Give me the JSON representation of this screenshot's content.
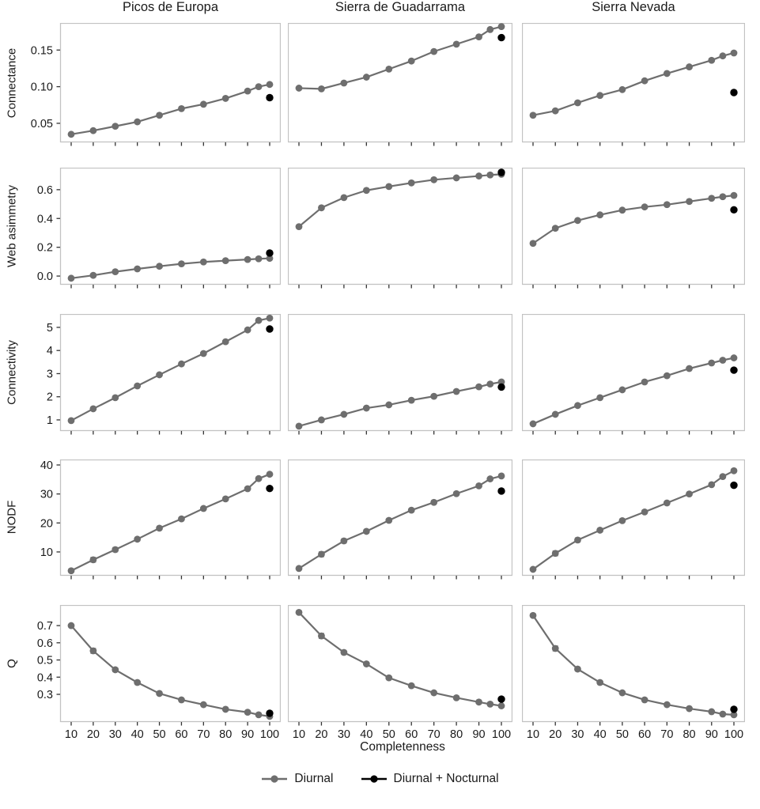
{
  "chart_data": {
    "type": "line",
    "xlabel": "Completenness",
    "columns": [
      "Picos de Europa",
      "Sierra de Guadarrama",
      "Sierra Nevada"
    ],
    "x": [
      10,
      20,
      30,
      40,
      50,
      60,
      70,
      80,
      90,
      95,
      100
    ],
    "x_ticks": [
      10,
      20,
      30,
      40,
      50,
      60,
      70,
      80,
      90,
      100
    ],
    "x_tick_labels": [
      "10",
      "20",
      "30",
      "40",
      "50",
      "60",
      "70",
      "80",
      "90",
      "100"
    ],
    "error_bars": true,
    "legend": [
      {
        "name": "Diurnal",
        "color": "#6e6e6e"
      },
      {
        "name": "Diurnal + Nocturnal",
        "color": "#000000"
      }
    ],
    "colors": {
      "diurnal": "#6e6e6e",
      "nocturnal": "#000000",
      "panel_border": "#c2c2c2",
      "tick": "#333333",
      "text": "#1a1a1a"
    },
    "rows": [
      {
        "ylabel": "Connectance",
        "ylim": [
          0.024,
          0.187
        ],
        "yticks": [
          0.05,
          0.1,
          0.15
        ],
        "ytick_labels": [
          "0.05",
          "0.10",
          "0.15"
        ],
        "diurnal": [
          [
            0.035,
            0.04,
            0.046,
            0.052,
            0.061,
            0.07,
            0.076,
            0.084,
            0.094,
            0.1,
            0.103
          ],
          [
            0.098,
            0.097,
            0.105,
            0.113,
            0.124,
            0.135,
            0.148,
            0.158,
            0.168,
            0.178,
            0.182
          ],
          [
            0.061,
            0.067,
            0.078,
            0.088,
            0.096,
            0.108,
            0.118,
            0.127,
            0.136,
            0.142,
            0.146
          ]
        ],
        "nocturnal": [
          0.085,
          0.167,
          0.092
        ],
        "err": [
          0.001,
          0.0015,
          0.0015,
          0.0015,
          0.001,
          0.001,
          0.001,
          0.001,
          0.001,
          0.0008,
          0.0005
        ]
      },
      {
        "ylabel": "Web asimmetry",
        "ylim": [
          -0.06,
          0.753
        ],
        "yticks": [
          0.0,
          0.2,
          0.4,
          0.6
        ],
        "ytick_labels": [
          "0.0",
          "0.2",
          "0.4",
          "0.6"
        ],
        "diurnal": [
          [
            -0.015,
            0.005,
            0.03,
            0.05,
            0.068,
            0.085,
            0.098,
            0.107,
            0.115,
            0.12,
            0.123
          ],
          [
            0.343,
            0.474,
            0.545,
            0.595,
            0.622,
            0.647,
            0.669,
            0.682,
            0.695,
            0.702,
            0.707
          ],
          [
            0.227,
            0.332,
            0.386,
            0.425,
            0.458,
            0.48,
            0.496,
            0.518,
            0.54,
            0.551,
            0.56
          ]
        ],
        "nocturnal": [
          0.16,
          0.72,
          0.46
        ],
        "err": [
          0.006,
          0.01,
          0.008,
          0.007,
          0.006,
          0.005,
          0.005,
          0.004,
          0.004,
          0.003,
          0.002
        ]
      },
      {
        "ylabel": "Connectivity",
        "ylim": [
          0.52,
          5.58
        ],
        "yticks": [
          1,
          2,
          3,
          4,
          5
        ],
        "ytick_labels": [
          "1",
          "2",
          "3",
          "4",
          "5"
        ],
        "diurnal": [
          [
            0.97,
            1.48,
            1.96,
            2.47,
            2.95,
            3.42,
            3.87,
            4.38,
            4.89,
            5.3,
            5.4
          ],
          [
            0.73,
            1.0,
            1.24,
            1.51,
            1.65,
            1.85,
            2.02,
            2.23,
            2.43,
            2.55,
            2.64
          ],
          [
            0.83,
            1.24,
            1.62,
            1.96,
            2.3,
            2.64,
            2.91,
            3.22,
            3.46,
            3.58,
            3.68
          ]
        ],
        "nocturnal": [
          4.93,
          2.42,
          3.15
        ],
        "err": [
          0.03,
          0.05,
          0.05,
          0.04,
          0.04,
          0.03,
          0.03,
          0.03,
          0.025,
          0.02,
          0.015
        ]
      },
      {
        "ylabel": "NODF",
        "ylim": [
          1.8,
          41.9
        ],
        "yticks": [
          10,
          20,
          30,
          40
        ],
        "ytick_labels": [
          "10",
          "20",
          "30",
          "40"
        ],
        "diurnal": [
          [
            3.5,
            7.3,
            10.8,
            14.4,
            18.2,
            21.4,
            25.0,
            28.3,
            31.8,
            35.3,
            36.8
          ],
          [
            4.3,
            9.2,
            13.8,
            17.1,
            20.9,
            24.4,
            27.1,
            30.1,
            32.8,
            35.2,
            36.2
          ],
          [
            4.0,
            9.5,
            14.1,
            17.5,
            20.8,
            23.8,
            26.9,
            30.0,
            33.2,
            36.0,
            38.0
          ]
        ],
        "nocturnal": [
          31.9,
          31.0,
          33.0
        ],
        "err": [
          0.35,
          0.8,
          0.7,
          0.6,
          0.55,
          0.5,
          0.45,
          0.4,
          0.35,
          0.3,
          0.25
        ]
      },
      {
        "ylabel": "Q",
        "ylim": [
          0.139,
          0.82
        ],
        "yticks": [
          0.3,
          0.4,
          0.5,
          0.6,
          0.7
        ],
        "ytick_labels": [
          "0.3",
          "0.4",
          "0.5",
          "0.6",
          "0.7"
        ],
        "diurnal": [
          [
            0.7,
            0.553,
            0.443,
            0.369,
            0.305,
            0.268,
            0.24,
            0.213,
            0.196,
            0.181,
            0.172
          ],
          [
            0.777,
            0.64,
            0.544,
            0.477,
            0.396,
            0.35,
            0.309,
            0.28,
            0.255,
            0.243,
            0.233
          ],
          [
            0.759,
            0.567,
            0.447,
            0.369,
            0.309,
            0.268,
            0.24,
            0.217,
            0.199,
            0.185,
            0.181
          ]
        ],
        "nocturnal": [
          0.19,
          0.272,
          0.213
        ],
        "err": [
          0.005,
          0.014,
          0.011,
          0.009,
          0.008,
          0.007,
          0.006,
          0.005,
          0.004,
          0.004,
          0.003
        ]
      }
    ]
  }
}
